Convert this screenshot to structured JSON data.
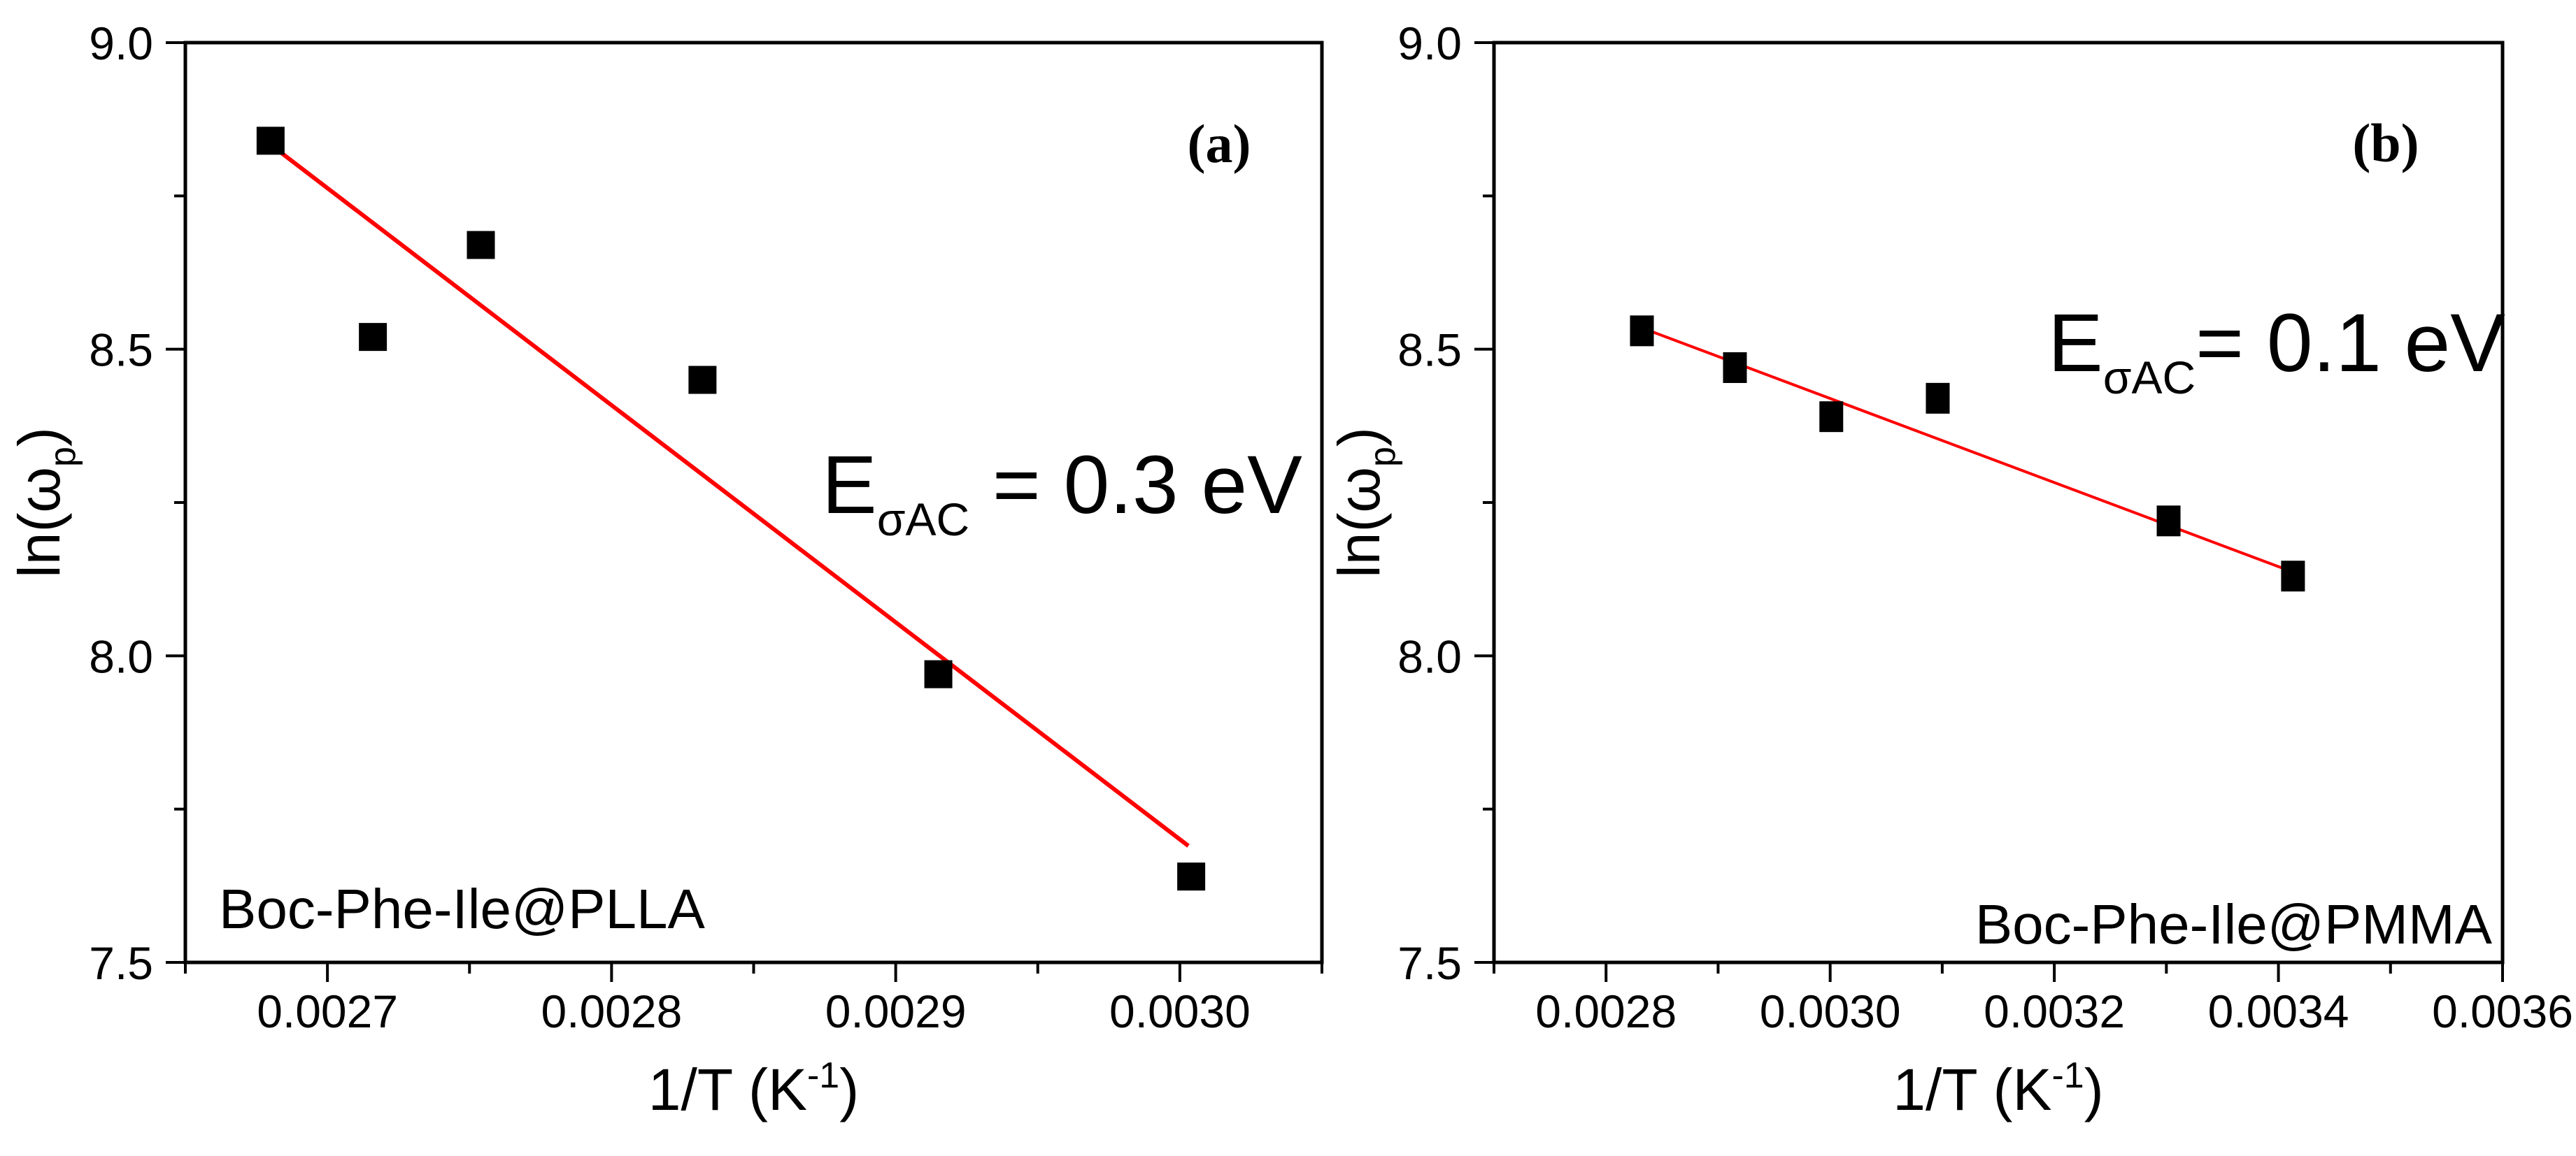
{
  "figure": {
    "background": "#ffffff",
    "description": "Arrhenius plots of ln(omega_p) versus 1/T for two peptide-polymer composites"
  },
  "chart_data": [
    {
      "type": "scatter",
      "panel_label": "(a)",
      "sample_label": "Boc-Phe-Ile@PLLA",
      "xlabel": "1/T (K-1)",
      "xlabel_parts": {
        "pre": "1/T (K",
        "sup": "-1",
        "post": ")"
      },
      "ylabel": "ln(omega_p)",
      "ylabel_parts": {
        "pre": "ln(",
        "omega": "ω",
        "sub": "p",
        "post": ")"
      },
      "xlim": [
        0.00265,
        0.00305
      ],
      "ylim": [
        7.5,
        9.0
      ],
      "x_major_ticks": [
        0.0027,
        0.0028,
        0.0029,
        0.003
      ],
      "x_tick_labels": [
        "0.0027",
        "0.0028",
        "0.0029",
        "0.0030"
      ],
      "x_minor_ticks": [
        0.00265,
        0.00275,
        0.00285,
        0.00295,
        0.00305
      ],
      "y_major_ticks": [
        7.5,
        8.0,
        8.5,
        9.0
      ],
      "y_tick_labels": [
        "7.5",
        "8.0",
        "8.5",
        "9.0"
      ],
      "y_minor_ticks": [
        7.75,
        8.25,
        8.75
      ],
      "grid": false,
      "legend": null,
      "points": [
        [
          0.00268,
          8.84
        ],
        [
          0.002716,
          8.52
        ],
        [
          0.002754,
          8.67
        ],
        [
          0.002832,
          8.45
        ],
        [
          0.002915,
          7.97
        ],
        [
          0.003004,
          7.64
        ]
      ],
      "fit_line": {
        "x1": 0.002681,
        "y1": 8.83,
        "x2": 0.003003,
        "y2": 7.69
      },
      "annotation": {
        "symbol": "E",
        "subscript": "σAC",
        "value_text": " = 0.3 eV"
      },
      "colors": {
        "marker": "#000000",
        "fit_line": "#ff0000",
        "annotation": "#ff0000",
        "axis": "#000000"
      }
    },
    {
      "type": "scatter",
      "panel_label": "(b)",
      "sample_label": "Boc-Phe-Ile@PMMA",
      "xlabel": "1/T (K-1)",
      "xlabel_parts": {
        "pre": "1/T (K",
        "sup": "-1",
        "post": ")"
      },
      "ylabel": "ln(omega_p)",
      "ylabel_parts": {
        "pre": "ln(",
        "omega": "ω",
        "sub": "p",
        "post": ")"
      },
      "xlim": [
        0.0027,
        0.0036
      ],
      "ylim": [
        7.5,
        9.0
      ],
      "x_major_ticks": [
        0.0028,
        0.003,
        0.0032,
        0.0034,
        0.0036
      ],
      "x_tick_labels": [
        "0.0028",
        "0.0030",
        "0.0032",
        "0.0034",
        "0.0036"
      ],
      "x_minor_ticks": [
        0.0027,
        0.0029,
        0.0031,
        0.0033,
        0.0035
      ],
      "y_major_ticks": [
        7.5,
        8.0,
        8.5,
        9.0
      ],
      "y_tick_labels": [
        "7.5",
        "8.0",
        "8.5",
        "9.0"
      ],
      "y_minor_ticks": [
        7.75,
        8.25,
        8.75
      ],
      "grid": false,
      "legend": null,
      "points": [
        [
          0.002832,
          8.53
        ],
        [
          0.002915,
          8.47
        ],
        [
          0.003001,
          8.39
        ],
        [
          0.003096,
          8.42
        ],
        [
          0.003302,
          8.22
        ],
        [
          0.003413,
          8.13
        ]
      ],
      "fit_line": {
        "x1": 0.002839,
        "y1": 8.53,
        "x2": 0.003408,
        "y2": 8.14
      },
      "annotation": {
        "symbol": "E",
        "subscript": "σAC",
        "value_text": "= 0.1 eV"
      },
      "colors": {
        "marker": "#000000",
        "fit_line": "#ff0000",
        "annotation": "#ff0000",
        "axis": "#000000"
      }
    }
  ]
}
